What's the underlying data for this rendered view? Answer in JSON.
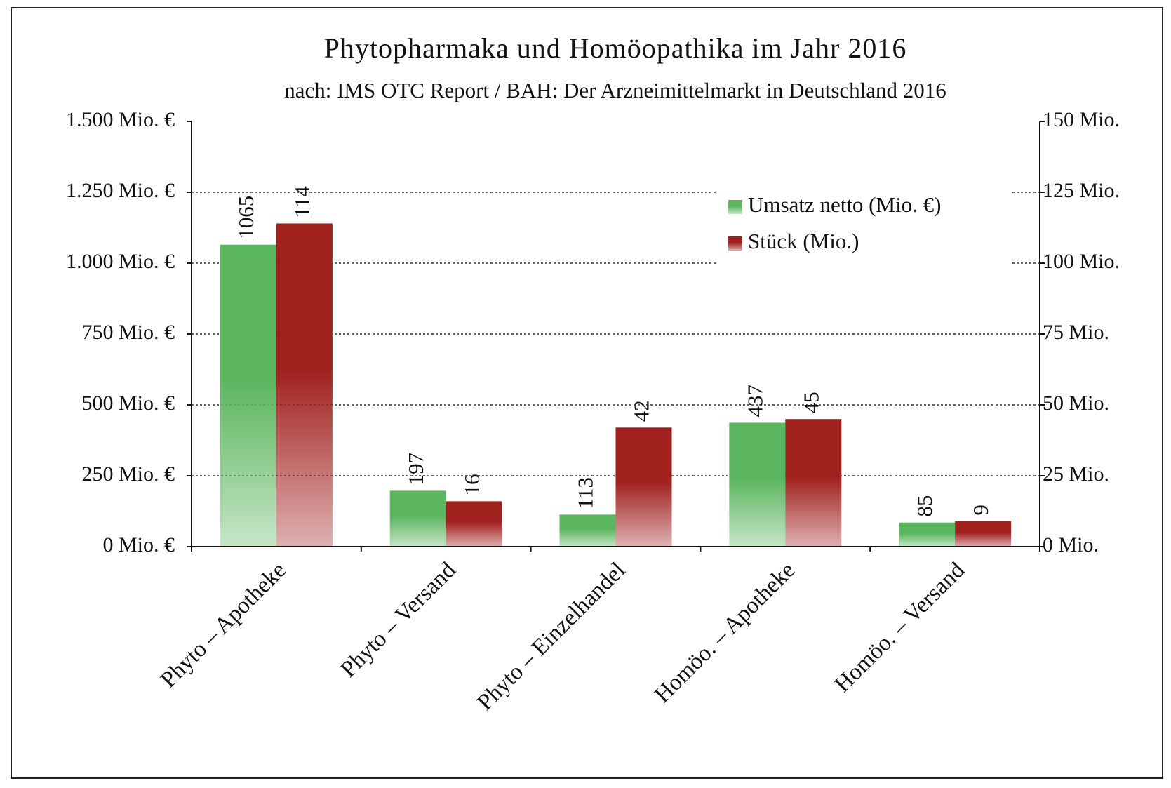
{
  "chart_data": {
    "type": "bar",
    "title": "Phytopharmaka und Homöopathika im Jahr 2016",
    "subtitle": "nach: IMS OTC Report / BAH: Der Arzneimittelmarkt in Deutschland 2016",
    "categories": [
      "Phyto – Apotheke",
      "Phyto – Versand",
      "Phyto – Einzelhandel",
      "Homöo. – Apotheke",
      "Homöo. – Versand"
    ],
    "series": [
      {
        "name": "Umsatz netto (Mio. €)",
        "color": "#5cb65f",
        "values": [
          1065,
          197,
          113,
          437,
          85
        ]
      },
      {
        "name": "Stück (Mio.)",
        "color": "#a0201e",
        "axis": "y2",
        "values": [
          114,
          16,
          42,
          45,
          9
        ]
      }
    ],
    "ylim": [
      0,
      1500
    ],
    "yticks": [
      {
        "value": 0,
        "label": "0 Mio. €"
      },
      {
        "value": 250,
        "label": "250 Mio. €"
      },
      {
        "value": 500,
        "label": "500 Mio. €"
      },
      {
        "value": 750,
        "label": "750 Mio. €"
      },
      {
        "value": 1000,
        "label": "1.000 Mio. €"
      },
      {
        "value": 1250,
        "label": "1.250 Mio. €"
      },
      {
        "value": 1500,
        "label": "1.500 Mio. €"
      }
    ],
    "y2lim": [
      0,
      150
    ],
    "y2ticks": [
      {
        "value": 0,
        "label": "0 Mio."
      },
      {
        "value": 25,
        "label": "25 Mio."
      },
      {
        "value": 50,
        "label": "50 Mio."
      },
      {
        "value": 75,
        "label": "75 Mio."
      },
      {
        "value": 100,
        "label": "100 Mio."
      },
      {
        "value": 125,
        "label": "125 Mio."
      },
      {
        "value": 150,
        "label": "150 Mio."
      }
    ],
    "grid": true,
    "legend": "upper right"
  }
}
